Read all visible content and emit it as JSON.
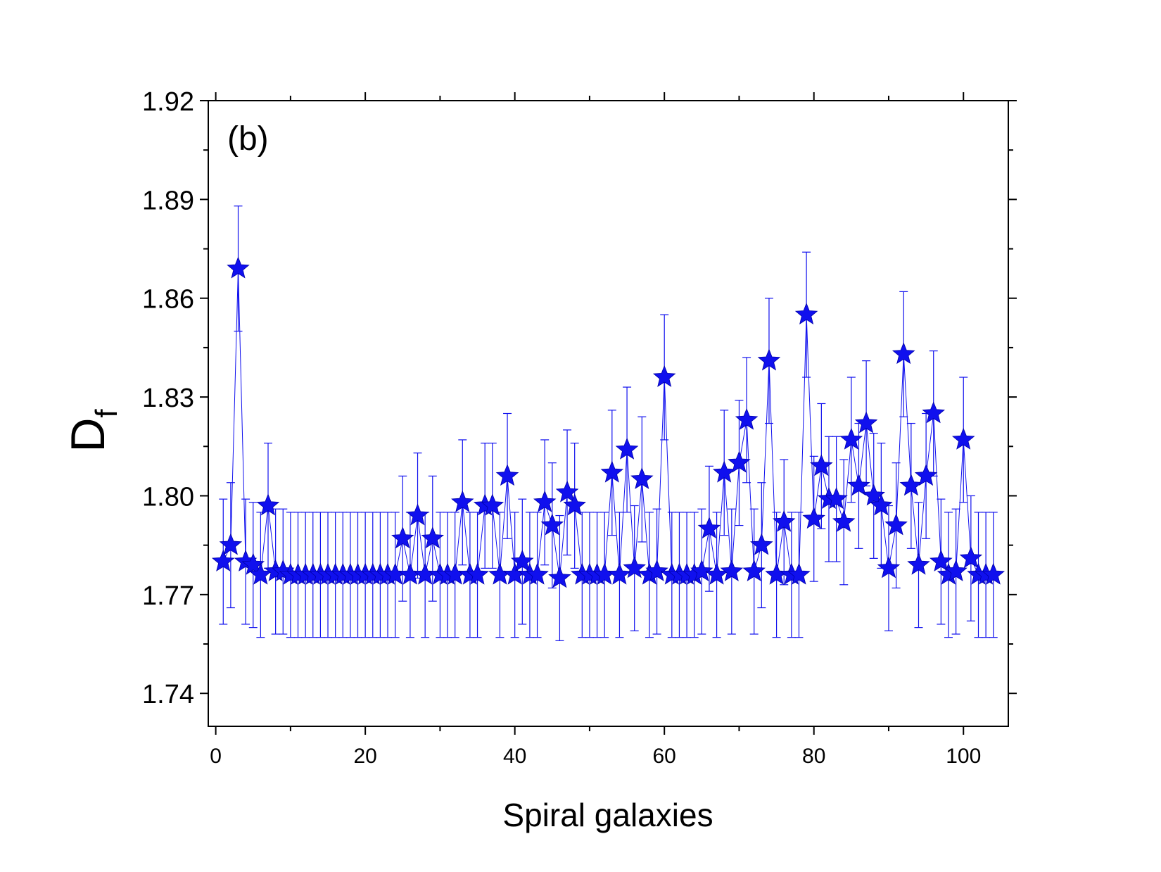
{
  "chart_data": {
    "type": "scatter",
    "title": "",
    "panel_label": "(b)",
    "xlabel": "Spiral galaxies",
    "ylabel_main": "D",
    "ylabel_sub": "f",
    "xlim": [
      -1,
      106
    ],
    "ylim": [
      1.73,
      1.92
    ],
    "x_ticks": [
      0,
      20,
      40,
      60,
      80,
      100
    ],
    "x_tick_labels": [
      "0",
      "20",
      "40",
      "60",
      "80",
      "100"
    ],
    "y_ticks": [
      1.74,
      1.77,
      1.8,
      1.83,
      1.86,
      1.89,
      1.92
    ],
    "y_tick_labels": [
      "1.74",
      "1.77",
      "1.80",
      "1.83",
      "1.86",
      "1.89",
      "1.92"
    ],
    "marker": "star",
    "color": "#1010ee",
    "connected_with_line": true,
    "x": [
      1,
      2,
      3,
      4,
      5,
      6,
      7,
      8,
      9,
      10,
      11,
      12,
      13,
      14,
      15,
      16,
      17,
      18,
      19,
      20,
      21,
      22,
      23,
      24,
      25,
      26,
      27,
      28,
      29,
      30,
      31,
      32,
      33,
      34,
      35,
      36,
      37,
      38,
      39,
      40,
      41,
      42,
      43,
      44,
      45,
      46,
      47,
      48,
      49,
      50,
      51,
      52,
      53,
      54,
      55,
      56,
      57,
      58,
      59,
      60,
      61,
      62,
      63,
      64,
      65,
      66,
      67,
      68,
      69,
      70,
      71,
      72,
      73,
      74,
      75,
      76,
      77,
      78,
      79,
      80,
      81,
      82,
      83,
      84,
      85,
      86,
      87,
      88,
      89,
      90,
      91,
      92,
      93,
      94,
      95,
      96,
      97,
      98,
      99,
      100,
      101,
      102,
      103,
      104
    ],
    "y": [
      1.78,
      1.785,
      1.869,
      1.78,
      1.779,
      1.776,
      1.797,
      1.777,
      1.777,
      1.776,
      1.776,
      1.776,
      1.776,
      1.776,
      1.776,
      1.776,
      1.776,
      1.776,
      1.776,
      1.776,
      1.776,
      1.776,
      1.776,
      1.776,
      1.787,
      1.776,
      1.794,
      1.776,
      1.787,
      1.776,
      1.776,
      1.776,
      1.798,
      1.776,
      1.776,
      1.797,
      1.797,
      1.776,
      1.806,
      1.776,
      1.78,
      1.776,
      1.776,
      1.798,
      1.791,
      1.775,
      1.801,
      1.797,
      1.776,
      1.776,
      1.776,
      1.776,
      1.807,
      1.776,
      1.814,
      1.778,
      1.805,
      1.776,
      1.777,
      1.836,
      1.776,
      1.776,
      1.776,
      1.776,
      1.777,
      1.79,
      1.776,
      1.807,
      1.777,
      1.81,
      1.823,
      1.777,
      1.785,
      1.841,
      1.776,
      1.792,
      1.776,
      1.776,
      1.855,
      1.793,
      1.809,
      1.799,
      1.799,
      1.792,
      1.817,
      1.803,
      1.822,
      1.8,
      1.797,
      1.778,
      1.791,
      1.843,
      1.803,
      1.779,
      1.806,
      1.825,
      1.78,
      1.776,
      1.777,
      1.817,
      1.781,
      1.776,
      1.776,
      1.776
    ],
    "yerr": [
      0.019,
      0.019,
      0.019,
      0.019,
      0.019,
      0.019,
      0.019,
      0.019,
      0.019,
      0.019,
      0.019,
      0.019,
      0.019,
      0.019,
      0.019,
      0.019,
      0.019,
      0.019,
      0.019,
      0.019,
      0.019,
      0.019,
      0.019,
      0.019,
      0.019,
      0.019,
      0.019,
      0.019,
      0.019,
      0.019,
      0.019,
      0.019,
      0.019,
      0.019,
      0.019,
      0.019,
      0.019,
      0.019,
      0.019,
      0.019,
      0.019,
      0.019,
      0.019,
      0.019,
      0.019,
      0.019,
      0.019,
      0.019,
      0.019,
      0.019,
      0.019,
      0.019,
      0.019,
      0.019,
      0.019,
      0.019,
      0.019,
      0.019,
      0.019,
      0.019,
      0.019,
      0.019,
      0.019,
      0.019,
      0.019,
      0.019,
      0.019,
      0.019,
      0.019,
      0.019,
      0.019,
      0.019,
      0.019,
      0.019,
      0.019,
      0.019,
      0.019,
      0.019,
      0.019,
      0.019,
      0.019,
      0.019,
      0.019,
      0.019,
      0.019,
      0.019,
      0.019,
      0.019,
      0.019,
      0.019,
      0.019,
      0.019,
      0.019,
      0.019,
      0.019,
      0.019,
      0.019,
      0.019,
      0.019,
      0.019,
      0.019,
      0.019,
      0.019,
      0.019
    ]
  }
}
